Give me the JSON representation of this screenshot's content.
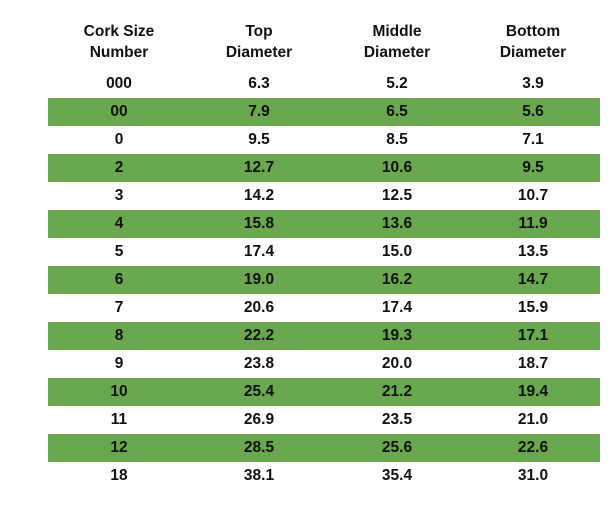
{
  "table": {
    "headers": [
      [
        "Cork Size",
        "Number"
      ],
      [
        "Top",
        "Diameter"
      ],
      [
        "Middle",
        "Diameter"
      ],
      [
        "Bottom",
        "Diameter"
      ]
    ],
    "rows": [
      [
        "000",
        "6.3",
        "5.2",
        "3.9"
      ],
      [
        "00",
        "7.9",
        "6.5",
        "5.6"
      ],
      [
        "0",
        "9.5",
        "8.5",
        "7.1"
      ],
      [
        "2",
        "12.7",
        "10.6",
        "9.5"
      ],
      [
        "3",
        "14.2",
        "12.5",
        "10.7"
      ],
      [
        "4",
        "15.8",
        "13.6",
        "11.9"
      ],
      [
        "5",
        "17.4",
        "15.0",
        "13.5"
      ],
      [
        "6",
        "19.0",
        "16.2",
        "14.7"
      ],
      [
        "7",
        "20.6",
        "17.4",
        "15.9"
      ],
      [
        "8",
        "22.2",
        "19.3",
        "17.1"
      ],
      [
        "9",
        "23.8",
        "20.0",
        "18.7"
      ],
      [
        "10",
        "25.4",
        "21.2",
        "19.4"
      ],
      [
        "11",
        "26.9",
        "23.5",
        "21.0"
      ],
      [
        "12",
        "28.5",
        "25.6",
        "22.6"
      ],
      [
        "18",
        "38.1",
        "35.4",
        "31.0"
      ]
    ],
    "stripe_color": "#6aa84f"
  }
}
